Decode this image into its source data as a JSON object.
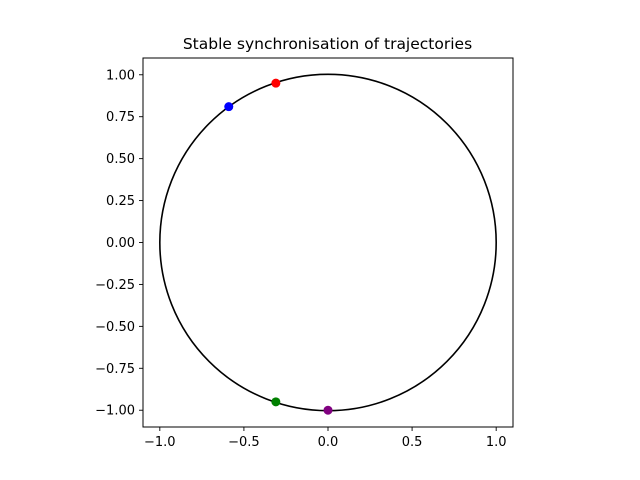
{
  "chart_data": {
    "type": "scatter",
    "title": "Stable synchronisation of trajectories",
    "xlabel": "",
    "ylabel": "",
    "xlim": [
      -1.1,
      1.1
    ],
    "ylim": [
      -1.1,
      1.1
    ],
    "aspect": "equal",
    "grid": false,
    "x_ticks": [
      -1.0,
      -0.5,
      0.0,
      0.5,
      1.0
    ],
    "x_tick_labels": [
      "−1.0",
      "−0.5",
      "0.0",
      "0.5",
      "1.0"
    ],
    "y_ticks": [
      1.0,
      0.75,
      0.5,
      0.25,
      0.0,
      -0.25,
      -0.5,
      -0.75,
      -1.0
    ],
    "y_tick_labels": [
      "1.00",
      "0.75",
      "0.50",
      "0.25",
      "0.00",
      "−0.25",
      "−0.50",
      "−0.75",
      "−1.00"
    ],
    "circle": {
      "center": [
        0,
        0
      ],
      "radius": 1.0,
      "color": "#000000"
    },
    "points": [
      {
        "x": -0.31,
        "y": 0.95,
        "color": "#ff0000"
      },
      {
        "x": -0.59,
        "y": 0.81,
        "color": "#0000ff"
      },
      {
        "x": -0.31,
        "y": -0.95,
        "color": "#008000"
      },
      {
        "x": 0.0,
        "y": -1.0,
        "color": "#800080"
      }
    ]
  }
}
